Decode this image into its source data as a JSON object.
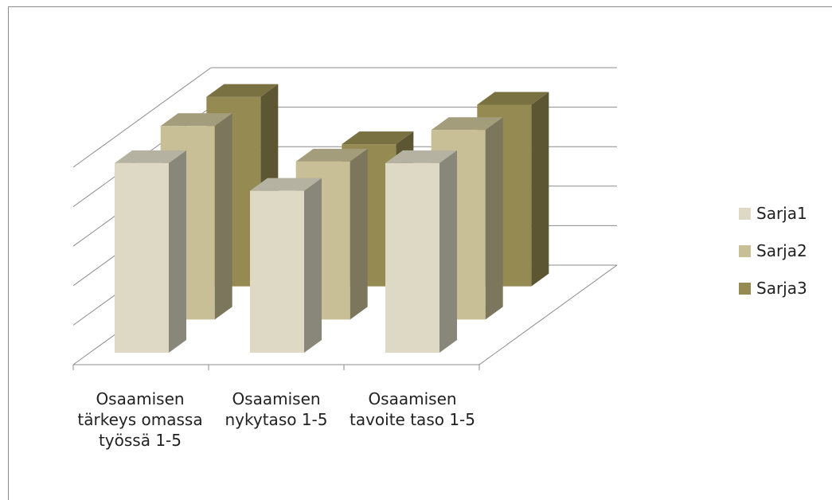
{
  "chart_data": {
    "type": "bar",
    "categories": [
      "Osaamisen tärkeys omassa työssä  1-5",
      "Osaamisen nykytaso 1-5",
      "Osaamisen tavoite taso 1-5"
    ],
    "series": [
      {
        "name": "Sarja1",
        "values": [
          4.8,
          4.1,
          4.8
        ],
        "color": "#ddd9c4"
      },
      {
        "name": "Sarja2",
        "values": [
          4.9,
          4.0,
          4.8
        ],
        "color": "#c8bf96"
      },
      {
        "name": "Sarja3",
        "values": [
          4.8,
          3.6,
          4.6
        ],
        "color": "#958a52"
      }
    ],
    "ylim": [
      0,
      5
    ],
    "grid": true,
    "legend_position": "right"
  }
}
